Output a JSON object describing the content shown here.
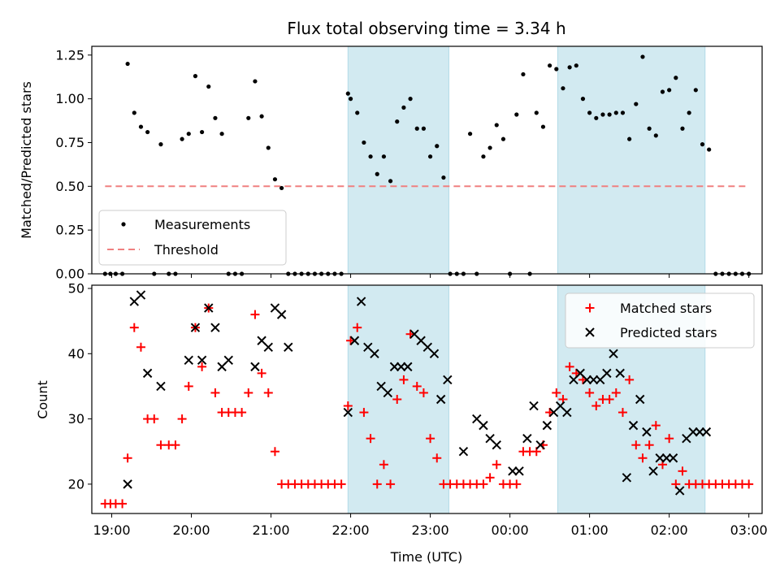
{
  "chart_data": [
    {
      "type": "scatter",
      "title": "Flux total observing time = 3.34 h",
      "xlabel": "",
      "ylabel": "Matched/Predicted stars",
      "ylim": [
        0,
        1.3
      ],
      "yticks": [
        "0.00",
        "0.25",
        "0.50",
        "0.75",
        "1.00",
        "1.25"
      ],
      "ytick_values": [
        0,
        0.25,
        0.5,
        0.75,
        1.0,
        1.25
      ],
      "legend": {
        "position": "lower-left",
        "entries": [
          "Measurements",
          "Threshold"
        ]
      },
      "threshold": {
        "name": "Threshold",
        "value": 0.5,
        "x_start": "18:55",
        "x_end": "03:00",
        "color": "#f08080"
      },
      "series": [
        {
          "name": "Measurements",
          "color": "#000000",
          "x": [
            "18:55",
            "18:59",
            "19:03",
            "19:08",
            "19:12",
            "19:17",
            "19:22",
            "19:27",
            "19:32",
            "19:37",
            "19:43",
            "19:48",
            "19:53",
            "19:58",
            "20:03",
            "20:08",
            "20:13",
            "20:18",
            "20:23",
            "20:28",
            "20:33",
            "20:38",
            "20:43",
            "20:48",
            "20:53",
            "20:58",
            "21:03",
            "21:08",
            "21:13",
            "21:18",
            "21:23",
            "21:28",
            "21:33",
            "21:38",
            "21:43",
            "21:48",
            "21:53",
            "21:58",
            "22:00",
            "22:05",
            "22:10",
            "22:15",
            "22:20",
            "22:25",
            "22:30",
            "22:35",
            "22:40",
            "22:45",
            "22:50",
            "22:55",
            "23:00",
            "23:05",
            "23:10",
            "23:15",
            "23:20",
            "23:25",
            "23:30",
            "23:35",
            "23:40",
            "23:45",
            "23:50",
            "23:55",
            "00:00",
            "00:05",
            "00:10",
            "00:15",
            "00:20",
            "00:25",
            "00:30",
            "00:35",
            "00:40",
            "00:45",
            "00:50",
            "00:55",
            "01:00",
            "01:05",
            "01:10",
            "01:15",
            "01:20",
            "01:25",
            "01:30",
            "01:35",
            "01:40",
            "01:45",
            "01:50",
            "01:55",
            "02:00",
            "02:05",
            "02:10",
            "02:15",
            "02:20",
            "02:25",
            "02:30",
            "02:35",
            "02:40",
            "02:45",
            "02:50",
            "02:55",
            "03:00"
          ],
          "y": [
            0,
            0,
            0,
            0,
            1.2,
            0.92,
            0.84,
            0.81,
            0,
            0.74,
            0,
            0,
            0.77,
            0.8,
            1.13,
            0.81,
            1.07,
            0.89,
            0.8,
            0,
            0,
            0,
            0.89,
            1.1,
            0.9,
            0.72,
            0.54,
            0.49,
            0,
            0,
            0,
            0,
            0,
            0,
            0,
            0,
            0,
            1.03,
            1.0,
            0.92,
            0.75,
            0.67,
            0.57,
            0.67,
            0.53,
            0.87,
            0.95,
            1.0,
            0.83,
            0.83,
            0.67,
            0.73,
            0.55,
            0,
            0,
            0,
            0.8,
            0,
            0.67,
            0.72,
            0.85,
            0.77,
            0,
            0.91,
            1.14,
            0,
            0.92,
            0.84,
            1.19,
            1.17,
            1.06,
            1.18,
            1.19,
            1.0,
            0.92,
            0.89,
            0.91,
            0.91,
            0.92,
            0.92,
            0.77,
            0.97,
            1.24,
            0.83,
            0.79,
            1.04,
            1.05,
            1.12,
            0.83,
            0.92,
            1.05,
            0.74,
            0.71,
            0,
            0,
            0,
            0,
            0,
            0
          ]
        }
      ]
    },
    {
      "type": "scatter",
      "title": "",
      "xlabel": "Time (UTC)",
      "ylabel": "Count",
      "ylim": [
        15.5,
        50.5
      ],
      "yticks": [
        "20",
        "30",
        "40",
        "50"
      ],
      "ytick_values": [
        20,
        30,
        40,
        50
      ],
      "xticks": [
        "19:00",
        "20:00",
        "21:00",
        "22:00",
        "23:00",
        "00:00",
        "01:00",
        "02:00",
        "03:00"
      ],
      "legend": {
        "position": "upper-right",
        "entries": [
          "Matched stars",
          "Predicted stars"
        ]
      },
      "series": [
        {
          "name": "Matched stars",
          "marker": "plus",
          "color": "#ff0000",
          "x": [
            "18:55",
            "18:59",
            "19:03",
            "19:08",
            "19:12",
            "19:17",
            "19:22",
            "19:27",
            "19:32",
            "19:37",
            "19:43",
            "19:48",
            "19:53",
            "19:58",
            "20:03",
            "20:08",
            "20:13",
            "20:18",
            "20:23",
            "20:28",
            "20:33",
            "20:38",
            "20:43",
            "20:48",
            "20:53",
            "20:58",
            "21:03",
            "21:08",
            "21:13",
            "21:18",
            "21:23",
            "21:28",
            "21:33",
            "21:38",
            "21:43",
            "21:48",
            "21:53",
            "21:58",
            "22:00",
            "22:05",
            "22:10",
            "22:15",
            "22:20",
            "22:25",
            "22:30",
            "22:35",
            "22:40",
            "22:45",
            "22:50",
            "22:55",
            "23:00",
            "23:05",
            "23:10",
            "23:15",
            "23:20",
            "23:25",
            "23:30",
            "23:35",
            "23:40",
            "23:45",
            "23:50",
            "23:55",
            "00:00",
            "00:05",
            "00:10",
            "00:15",
            "00:20",
            "00:25",
            "00:30",
            "00:35",
            "00:40",
            "00:45",
            "00:50",
            "00:55",
            "01:00",
            "01:05",
            "01:10",
            "01:15",
            "01:20",
            "01:25",
            "01:30",
            "01:35",
            "01:40",
            "01:45",
            "01:50",
            "01:55",
            "02:00",
            "02:05",
            "02:10",
            "02:15",
            "02:20",
            "02:25",
            "02:30",
            "02:35",
            "02:40",
            "02:45",
            "02:50",
            "02:55",
            "03:00"
          ],
          "y": [
            17,
            17,
            17,
            17,
            24,
            44,
            41,
            30,
            30,
            26,
            26,
            26,
            30,
            35,
            44,
            38,
            47,
            34,
            31,
            31,
            31,
            31,
            34,
            46,
            37,
            34,
            25,
            20,
            20,
            20,
            20,
            20,
            20,
            20,
            20,
            20,
            20,
            32,
            42,
            44,
            31,
            27,
            20,
            23,
            20,
            33,
            36,
            43,
            35,
            34,
            27,
            24,
            20,
            20,
            20,
            20,
            20,
            20,
            20,
            21,
            23,
            20,
            20,
            20,
            25,
            25,
            25,
            26,
            31,
            34,
            33,
            38,
            37,
            36,
            34,
            32,
            33,
            33,
            34,
            31,
            36,
            26,
            24,
            26,
            29,
            23,
            27,
            20,
            22,
            20,
            20,
            20,
            20,
            20,
            20,
            20,
            20,
            20,
            20
          ]
        },
        {
          "name": "Predicted stars",
          "marker": "x",
          "color": "#000000",
          "x": [
            "19:12",
            "19:17",
            "19:22",
            "19:27",
            "19:37",
            "19:58",
            "20:03",
            "20:08",
            "20:13",
            "20:18",
            "20:23",
            "20:28",
            "20:48",
            "20:53",
            "20:58",
            "21:03",
            "21:08",
            "21:13",
            "21:58",
            "22:03",
            "22:08",
            "22:13",
            "22:18",
            "22:23",
            "22:28",
            "22:33",
            "22:38",
            "22:43",
            "22:48",
            "22:53",
            "22:58",
            "23:03",
            "23:08",
            "23:13",
            "23:25",
            "23:35",
            "23:40",
            "23:45",
            "23:50",
            "00:02",
            "00:07",
            "00:13",
            "00:18",
            "00:23",
            "00:28",
            "00:33",
            "00:38",
            "00:43",
            "00:48",
            "00:53",
            "00:58",
            "01:03",
            "01:08",
            "01:13",
            "01:18",
            "01:23",
            "01:28",
            "01:33",
            "01:38",
            "01:43",
            "01:48",
            "01:53",
            "01:58",
            "02:03",
            "02:08",
            "02:13",
            "02:18",
            "02:23",
            "02:28"
          ],
          "y": [
            20,
            48,
            49,
            37,
            35,
            39,
            44,
            39,
            47,
            44,
            38,
            39,
            38,
            42,
            41,
            47,
            46,
            41,
            31,
            42,
            48,
            41,
            40,
            35,
            34,
            38,
            38,
            38,
            43,
            42,
            41,
            40,
            33,
            36,
            25,
            30,
            29,
            27,
            26,
            22,
            22,
            27,
            32,
            26,
            29,
            31,
            32,
            31,
            36,
            37,
            36,
            36,
            36,
            37,
            40,
            37,
            21,
            29,
            33,
            28,
            22,
            24,
            24,
            24,
            19,
            27,
            28,
            28,
            28
          ]
        }
      ]
    }
  ],
  "shaded_regions": [
    {
      "x_start": "21:58",
      "x_end": "23:14",
      "color": "#add8e6"
    },
    {
      "x_start": "00:36",
      "x_end": "02:27",
      "color": "#add8e6"
    }
  ]
}
